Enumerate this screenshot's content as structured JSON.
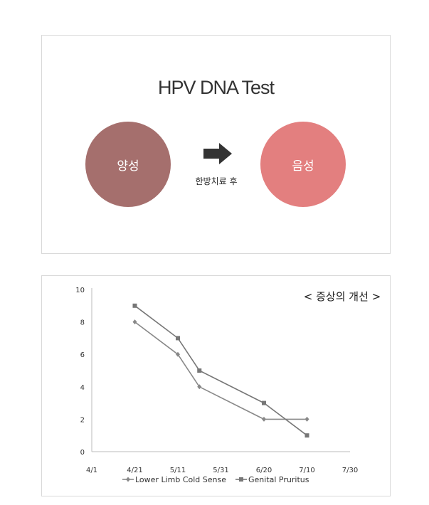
{
  "top": {
    "title": "HPV DNA Test",
    "before_label": "양성",
    "after_label": "음성",
    "arrow_caption": "한방치료 후",
    "colors": {
      "positive": "#a56f6d",
      "negative": "#e37f7f",
      "arrow": "#333333"
    }
  },
  "chart_data": {
    "type": "line",
    "title": "< 증상의 개선 >",
    "xlabel": "",
    "ylabel": "",
    "x_ticks": [
      "4/1",
      "4/21",
      "5/11",
      "5/31",
      "6/20",
      "7/10",
      "7/30"
    ],
    "ylim": [
      0,
      10
    ],
    "y_ticks": [
      0,
      2,
      4,
      6,
      8,
      10
    ],
    "grid": false,
    "legend": "bottom",
    "series": [
      {
        "name": "Lower Limb Cold Sense",
        "marker": "diamond",
        "color": "#888888",
        "points": [
          [
            "4/21",
            8
          ],
          [
            "5/11",
            6
          ],
          [
            "5/21",
            4
          ],
          [
            "6/20",
            2
          ],
          [
            "7/10",
            2
          ]
        ]
      },
      {
        "name": "Genital Pruritus",
        "marker": "square",
        "color": "#777777",
        "points": [
          [
            "4/21",
            9
          ],
          [
            "5/11",
            7
          ],
          [
            "5/21",
            5
          ],
          [
            "6/20",
            3
          ],
          [
            "7/10",
            1
          ]
        ]
      }
    ]
  }
}
